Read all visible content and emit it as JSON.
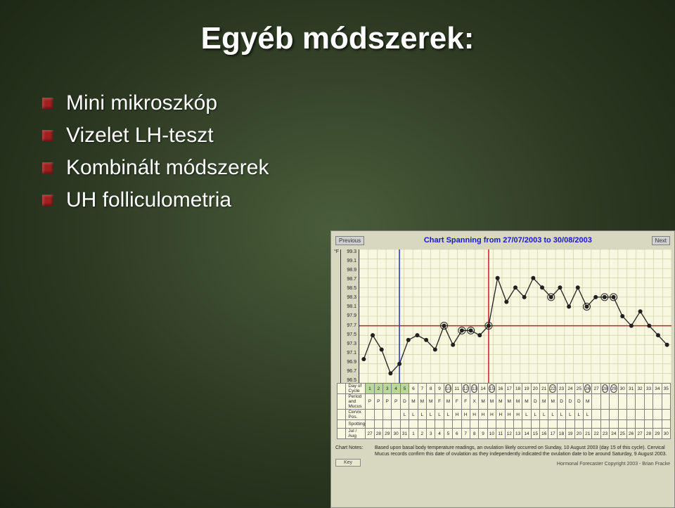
{
  "slide": {
    "title": "Egyéb módszerek:",
    "bullets": [
      "Mini mikroszkóp",
      "Vizelet LH-teszt",
      "Kombinált módszerek",
      "UH folliculometria"
    ],
    "bullet_color": "#a02020",
    "text_color": "#ffffff",
    "bg_gradient": [
      "#4a5d3a",
      "#1a2412"
    ]
  },
  "chart": {
    "prev_label": "Previous",
    "next_label": "Next",
    "title": "Chart Spanning from 27/07/2003 to 30/08/2003",
    "title_color": "#1818c8",
    "bg_color": "#d8d8c0",
    "grid_bg": "#f8f8e0",
    "grid_color": "#c8c8a0",
    "axis_line_color": "#333333",
    "y_unit": "°F",
    "y_ticks": [
      "99.3",
      "99.1",
      "98.9",
      "98.7",
      "98.5",
      "98.3",
      "98.1",
      "97.9",
      "97.7",
      "97.5",
      "97.3",
      "97.1",
      "96.9",
      "96.7",
      "96.5"
    ],
    "y_min": 96.5,
    "y_max": 99.3,
    "line_color": "#202020",
    "marker_color": "#202020",
    "marker_size": 3,
    "ovulation_day_idx": 14,
    "ovulation_line_color": "#c02020",
    "coverline_temp": 97.7,
    "coverline_color": "#c02020",
    "day5_line_idx": 4,
    "day5_line_color": "#2030c0",
    "circled_days_idx": [
      9,
      11,
      12,
      14,
      21,
      25,
      27,
      28
    ],
    "temps": [
      97.0,
      97.5,
      97.2,
      96.7,
      96.9,
      97.4,
      97.5,
      97.4,
      97.2,
      97.7,
      97.3,
      97.6,
      97.6,
      97.5,
      97.7,
      98.7,
      98.2,
      98.5,
      98.3,
      98.7,
      98.5,
      98.3,
      98.5,
      98.1,
      98.5,
      98.1,
      98.3,
      98.3,
      98.3,
      97.9,
      97.7,
      98.0,
      97.7,
      97.5,
      97.3
    ],
    "rows": {
      "day_of_cycle": {
        "label": "Day of Cycle",
        "values": [
          "1",
          "2",
          "3",
          "4",
          "5",
          "6",
          "7",
          "8",
          "9",
          "10",
          "11",
          "12",
          "13",
          "14",
          "15",
          "16",
          "17",
          "18",
          "19",
          "20",
          "21",
          "22",
          "23",
          "24",
          "25",
          "26",
          "27",
          "28",
          "29",
          "30",
          "31",
          "32",
          "33",
          "34",
          "35"
        ],
        "highlight_start": 0,
        "highlight_end": 4,
        "circled_idx": [
          9,
          11,
          12,
          14,
          21,
          25,
          27,
          28
        ]
      },
      "period_mucus": {
        "label": "Period and Mucus",
        "values": [
          "P",
          "P",
          "P",
          "P",
          "D",
          "M",
          "M",
          "M",
          "F",
          "M",
          "F",
          "F",
          "X",
          "M",
          "M",
          "M",
          "M",
          "M",
          "M",
          "D",
          "M",
          "M",
          "D",
          "D",
          "D",
          "M",
          "",
          "",
          "",
          "",
          "",
          "",
          "",
          "",
          ""
        ]
      },
      "cervix": {
        "label": "Cervix Pos.",
        "values": [
          "",
          "",
          "",
          "",
          "L",
          "L",
          "L",
          "L",
          "L",
          "L",
          "H",
          "H",
          "H",
          "H",
          "H",
          "H",
          "H",
          "H",
          "L",
          "L",
          "L",
          "L",
          "L",
          "L",
          "L",
          "L",
          "",
          "",
          "",
          "",
          "",
          "",
          "",
          "",
          ""
        ]
      },
      "spotting": {
        "label": "Spotting",
        "values": [
          "",
          "",
          "",
          "",
          "",
          "",
          "",
          "",
          "",
          "",
          "",
          "",
          "",
          "",
          "",
          "",
          "",
          "",
          "",
          "",
          "",
          "",
          "",
          "",
          "",
          "",
          "",
          "",
          "",
          "",
          "",
          "",
          "",
          "",
          ""
        ]
      },
      "dates": {
        "label": "Jul / Aug",
        "values": [
          "27",
          "28",
          "29",
          "30",
          "31",
          "1",
          "2",
          "3",
          "4",
          "5",
          "6",
          "7",
          "8",
          "9",
          "10",
          "11",
          "12",
          "13",
          "14",
          "15",
          "16",
          "17",
          "18",
          "19",
          "20",
          "21",
          "22",
          "23",
          "24",
          "25",
          "26",
          "27",
          "28",
          "29",
          "30"
        ]
      }
    },
    "notes_label": "Chart Notes:",
    "notes_text": "Based upon basal body temperature readings, an ovulation likely occurred on Sunday, 10 August 2003 (day 15 of this cycle). Cervical Mucus records confirm this date of ovulation as they independently indicated the ovulation date to be around Saturday, 9 August 2003.",
    "key_label": "Key",
    "copyright": "Hormonal Forecaster   Copyright 2003 - Brian Fracke"
  }
}
